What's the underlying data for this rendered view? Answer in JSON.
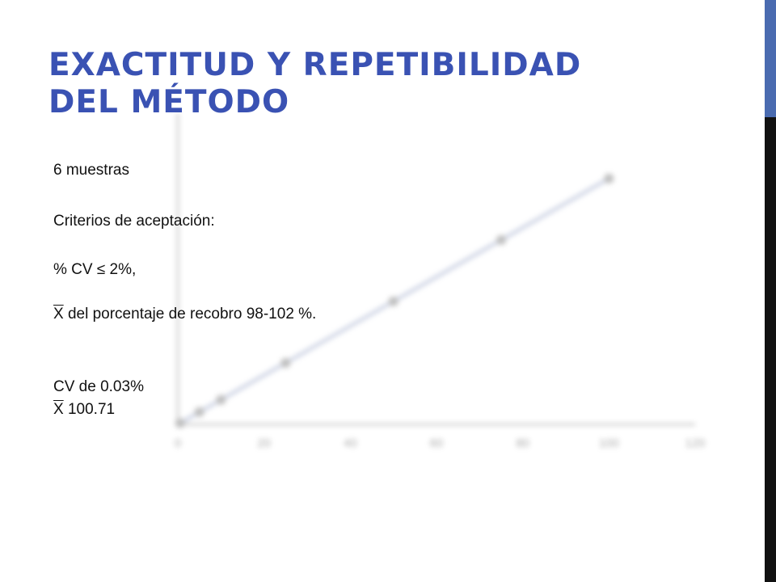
{
  "slide": {
    "title_line1": "EXACTITUD Y REPETIBILIDAD",
    "title_line2": "DEL MÉTODO",
    "title_color": "#3a52b3",
    "accent_color_top": "#4a6bb0",
    "accent_color_bottom": "#111111"
  },
  "content": {
    "samples": "6 muestras",
    "criteria_heading": "Criterios de aceptación:",
    "criterion_cv": "% CV ≤ 2%,",
    "xbar_symbol": "X",
    "criterion_recovery": " del porcentaje de recobro 98-102 %.",
    "result_cv": "CV de 0.03%",
    "result_mean": " 100.71"
  },
  "chart_data": {
    "type": "scatter",
    "title": "",
    "xlabel": "",
    "ylabel": "",
    "xlim": [
      0,
      120
    ],
    "ylim": [
      0,
      120
    ],
    "xticks": [
      0,
      20,
      40,
      60,
      80,
      100,
      120
    ],
    "x": [
      0.5,
      5,
      10,
      25,
      50,
      75,
      100
    ],
    "y": [
      0.5,
      5,
      10,
      25,
      50,
      75,
      100
    ],
    "trendline": true,
    "point_color": "#8a8a8a",
    "line_color": "#9aa6c8",
    "grid": false,
    "legend": "none"
  }
}
